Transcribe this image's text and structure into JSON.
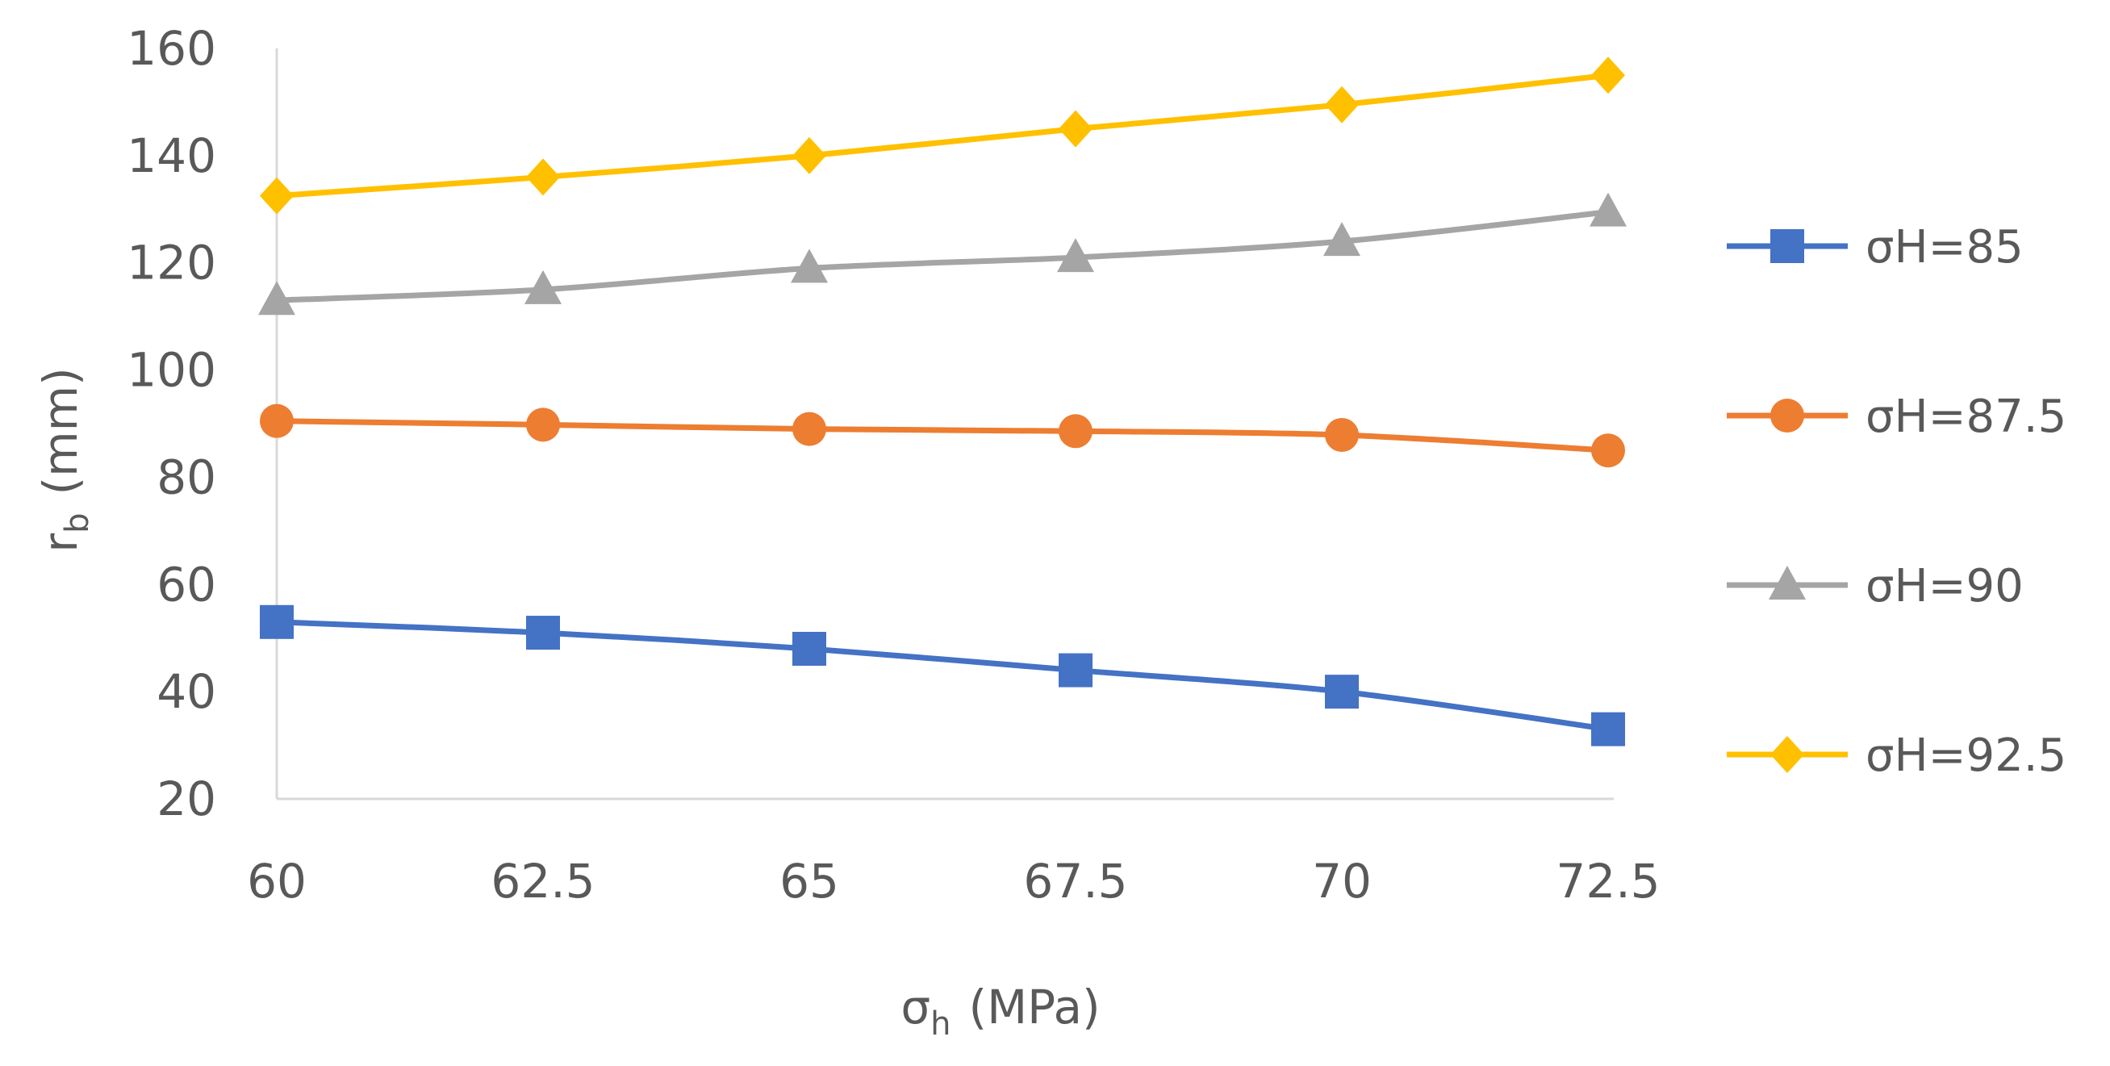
{
  "chart_data": {
    "type": "line",
    "title": "",
    "x": [
      60,
      62.5,
      65,
      67.5,
      70,
      72.5
    ],
    "x_tick_labels": [
      "60",
      "62.5",
      "65",
      "67.5",
      "70",
      "72.5"
    ],
    "y_tick_labels": [
      "20",
      "40",
      "60",
      "80",
      "100",
      "120",
      "140",
      "160"
    ],
    "ylim": [
      20,
      160
    ],
    "xlabel": {
      "main": "σ",
      "sub": "h",
      "rest": "(MPa)"
    },
    "ylabel": {
      "main": "r",
      "sub": "b",
      "rest": "(mm)"
    },
    "grid": false,
    "legend_position": "right",
    "series": [
      {
        "name": "σH=85",
        "marker": "square",
        "color": "#4472C4",
        "values": [
          53,
          51,
          48,
          44,
          40,
          33
        ]
      },
      {
        "name": "σH=87.5",
        "marker": "circle",
        "color": "#ED7D31",
        "values": [
          90.5,
          89.8,
          89,
          88.6,
          87.9,
          85
        ]
      },
      {
        "name": "σH=90",
        "marker": "triangle",
        "color": "#A5A5A5",
        "values": [
          113,
          115,
          119,
          121,
          124,
          129.5
        ]
      },
      {
        "name": "σH=92.5",
        "marker": "diamond",
        "color": "#FFC000",
        "values": [
          132.5,
          136,
          140,
          145,
          149.5,
          155
        ]
      }
    ]
  }
}
